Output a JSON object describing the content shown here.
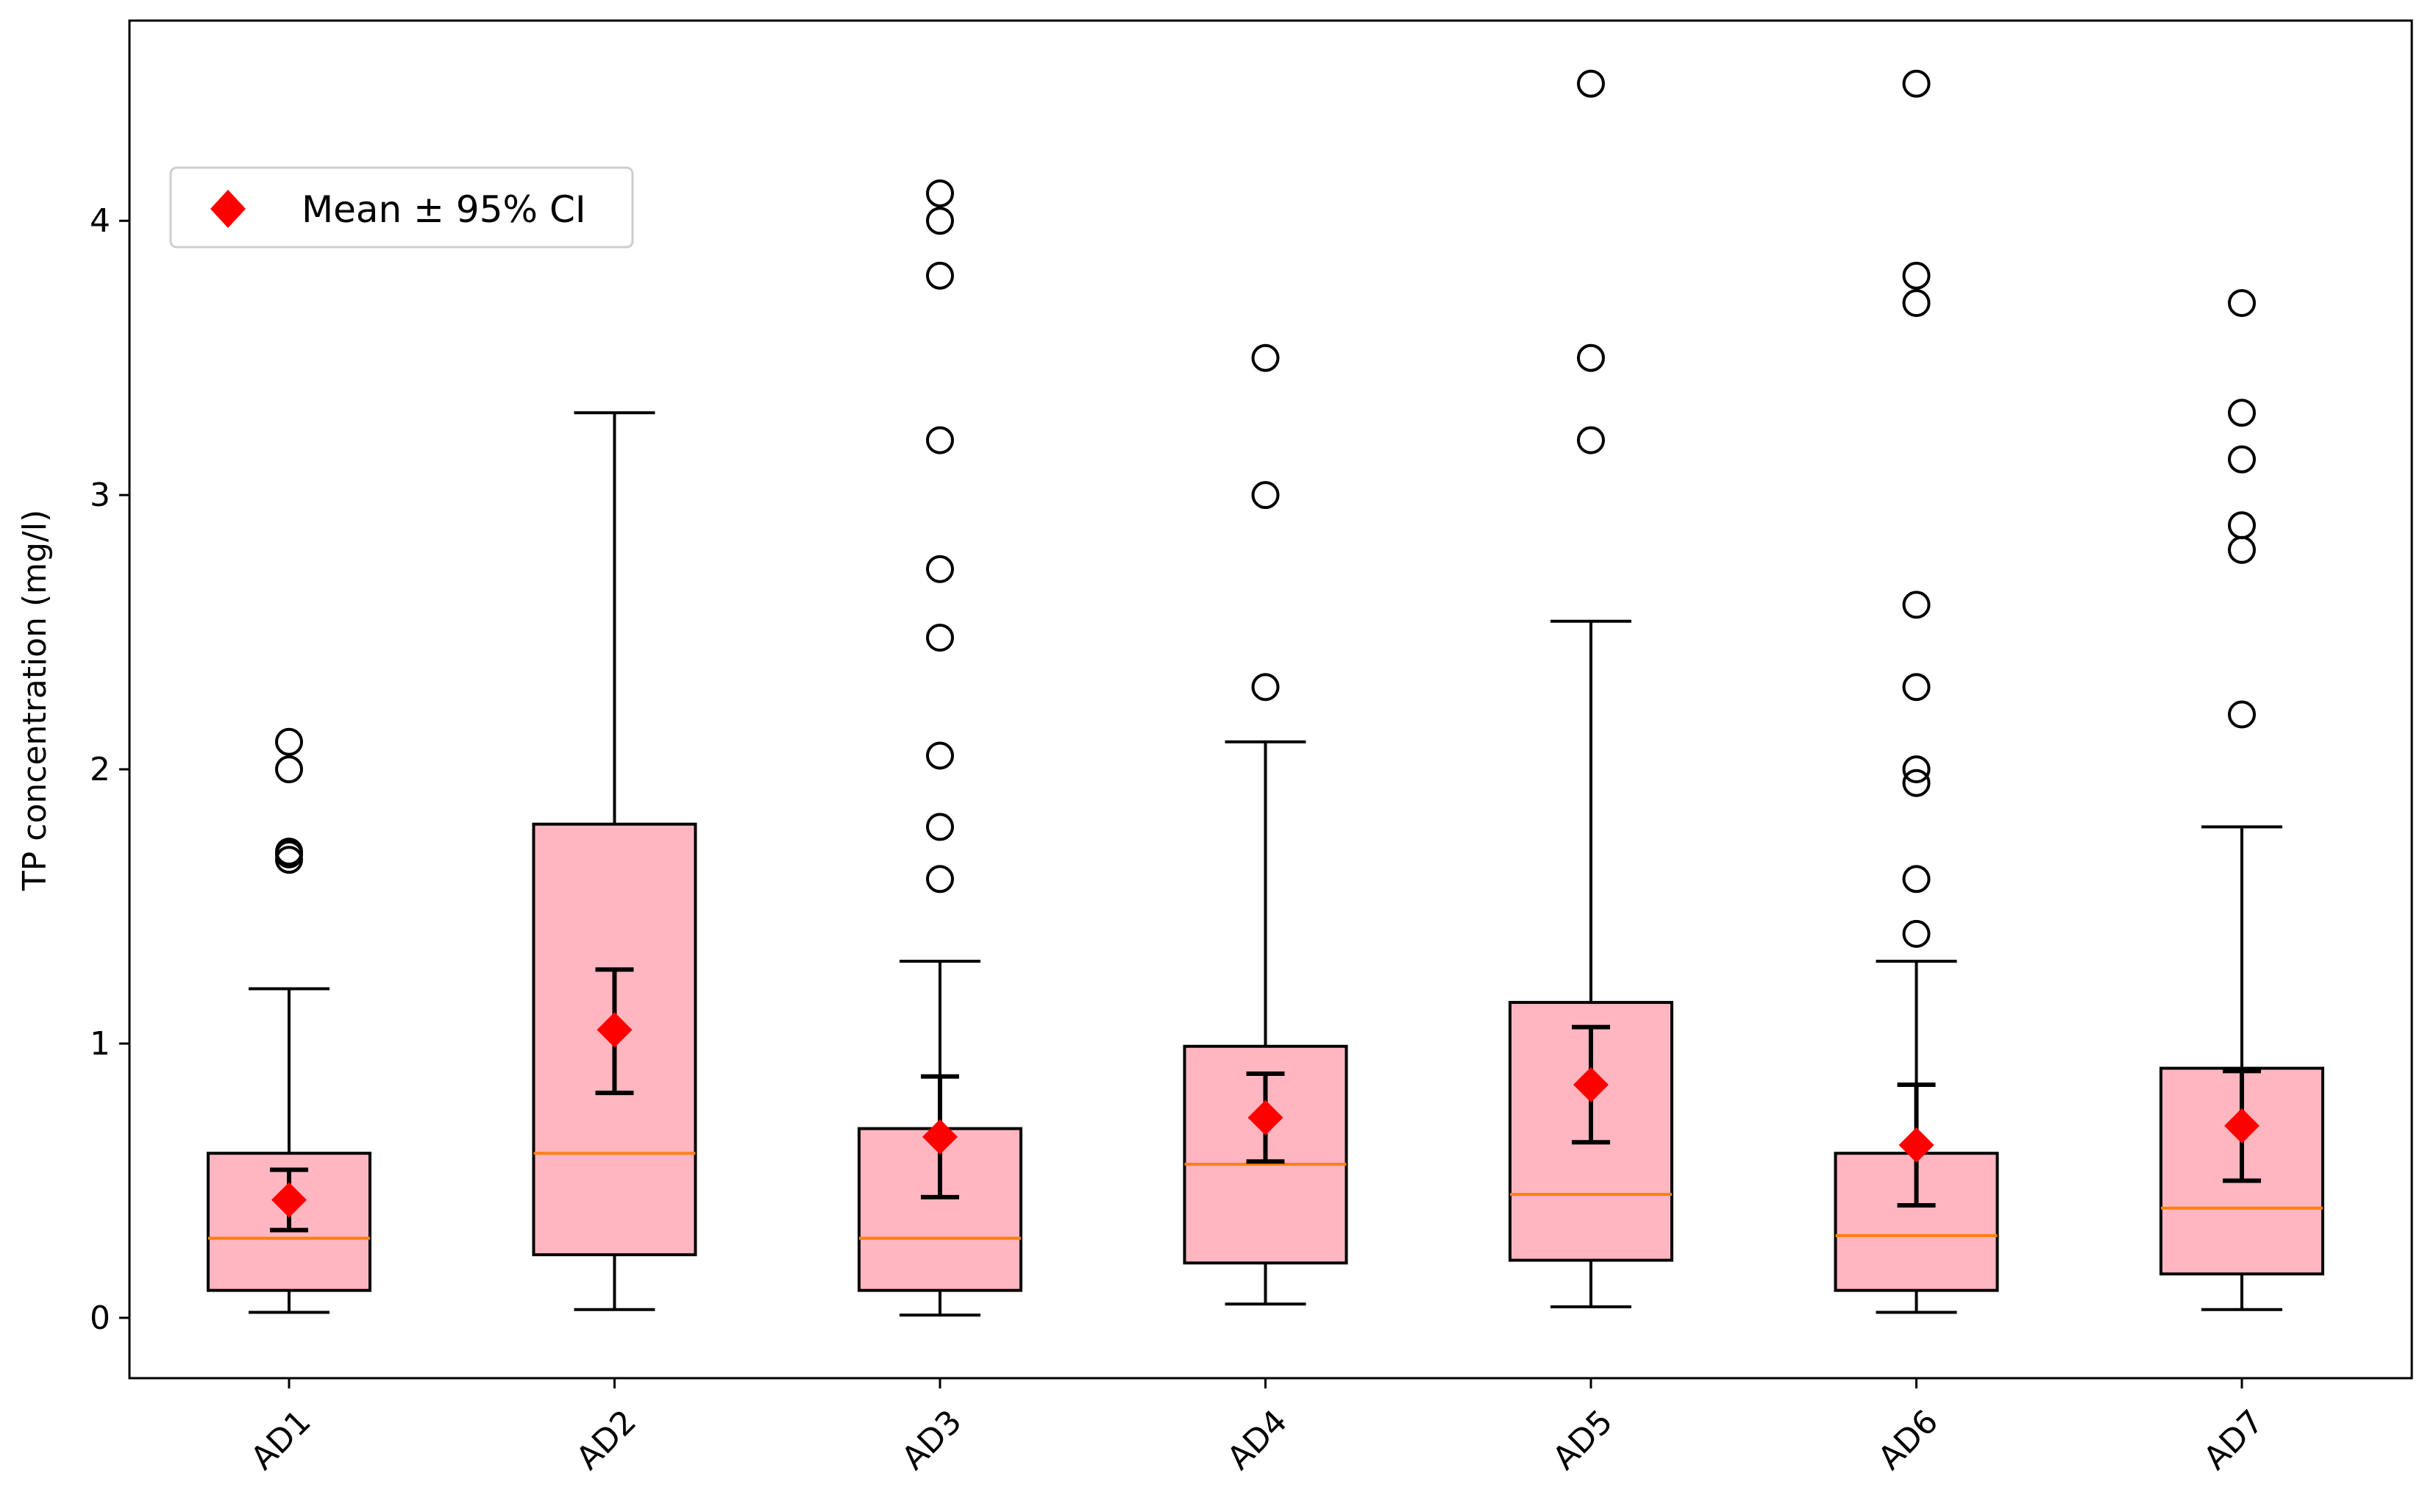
{
  "chart_data": {
    "type": "box",
    "title": "",
    "xlabel": "",
    "ylabel": "TP concentration (mg/l)",
    "ylim": [
      -0.22,
      4.73
    ],
    "yticks": [
      0,
      1,
      2,
      3,
      4
    ],
    "categories": [
      "AD1",
      "AD2",
      "AD3",
      "AD4",
      "AD5",
      "AD6",
      "AD7"
    ],
    "legend": {
      "label": "Mean ± 95% CI",
      "position": "upper-left"
    },
    "colors": {
      "box_fill": "#ffb6c1",
      "median": "#ff7f0e",
      "mean_marker": "#ff0000",
      "line": "#000000"
    },
    "boxes": [
      {
        "name": "AD1",
        "whisker_low": 0.02,
        "q1": 0.1,
        "median": 0.29,
        "q3": 0.6,
        "whisker_high": 1.2,
        "outliers": [
          1.67,
          1.69,
          1.7,
          2.0,
          2.1
        ],
        "mean": 0.43,
        "ci_low": 0.32,
        "ci_high": 0.54
      },
      {
        "name": "AD2",
        "whisker_low": 0.03,
        "q1": 0.23,
        "median": 0.6,
        "q3": 1.8,
        "whisker_high": 3.3,
        "outliers": [],
        "mean": 1.05,
        "ci_low": 0.82,
        "ci_high": 1.27
      },
      {
        "name": "AD3",
        "whisker_low": 0.01,
        "q1": 0.1,
        "median": 0.29,
        "q3": 0.69,
        "whisker_high": 1.3,
        "outliers": [
          1.6,
          1.79,
          2.05,
          2.48,
          2.73,
          3.2,
          3.8,
          4.0,
          4.1
        ],
        "mean": 0.66,
        "ci_low": 0.44,
        "ci_high": 0.88
      },
      {
        "name": "AD4",
        "whisker_low": 0.05,
        "q1": 0.2,
        "median": 0.56,
        "q3": 0.99,
        "whisker_high": 2.1,
        "outliers": [
          2.3,
          3.0,
          3.5
        ],
        "mean": 0.73,
        "ci_low": 0.57,
        "ci_high": 0.89
      },
      {
        "name": "AD5",
        "whisker_low": 0.04,
        "q1": 0.21,
        "median": 0.45,
        "q3": 1.15,
        "whisker_high": 2.54,
        "outliers": [
          3.2,
          3.5,
          4.5
        ],
        "mean": 0.85,
        "ci_low": 0.64,
        "ci_high": 1.06
      },
      {
        "name": "AD6",
        "whisker_low": 0.02,
        "q1": 0.1,
        "median": 0.3,
        "q3": 0.6,
        "whisker_high": 1.3,
        "outliers": [
          1.4,
          1.6,
          1.95,
          2.0,
          2.3,
          2.6,
          3.7,
          3.8,
          4.5
        ],
        "mean": 0.63,
        "ci_low": 0.41,
        "ci_high": 0.85
      },
      {
        "name": "AD7",
        "whisker_low": 0.03,
        "q1": 0.16,
        "median": 0.4,
        "q3": 0.91,
        "whisker_high": 1.79,
        "outliers": [
          2.2,
          2.8,
          2.89,
          3.13,
          3.3,
          3.7
        ],
        "mean": 0.7,
        "ci_low": 0.5,
        "ci_high": 0.9
      }
    ]
  }
}
